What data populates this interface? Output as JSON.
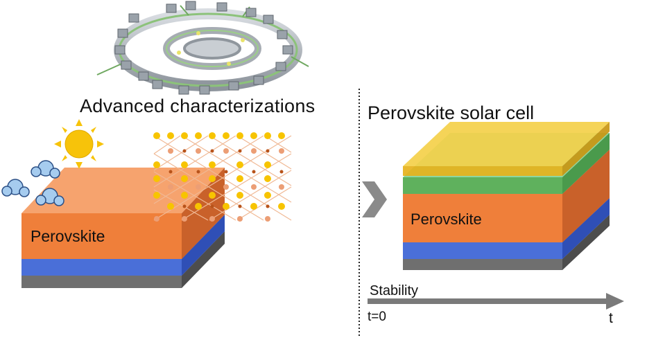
{
  "labels": {
    "advanced": "Advanced characterizations",
    "solar_cell": "Perovskite solar cell",
    "perovskite_left": "Perovskite",
    "perovskite_right": "Perovskite",
    "stability": "Stability",
    "t0": "t=0",
    "t": "t"
  },
  "colors": {
    "perovskite": "#ef7f3a",
    "blue_layer": "#4a6fd8",
    "gray_substrate": "#7d7d7d",
    "green_layer": "#5fb15d",
    "gold_layer": "#f2c12e",
    "sun": "#f7c30a",
    "moisture": "#9fc8ee",
    "arrow": "#7a7a7a"
  },
  "icons": [
    "synchrotron-icon",
    "sun-icon",
    "moisture-icon",
    "crystal-lattice-icon",
    "chevron-right-icon"
  ]
}
